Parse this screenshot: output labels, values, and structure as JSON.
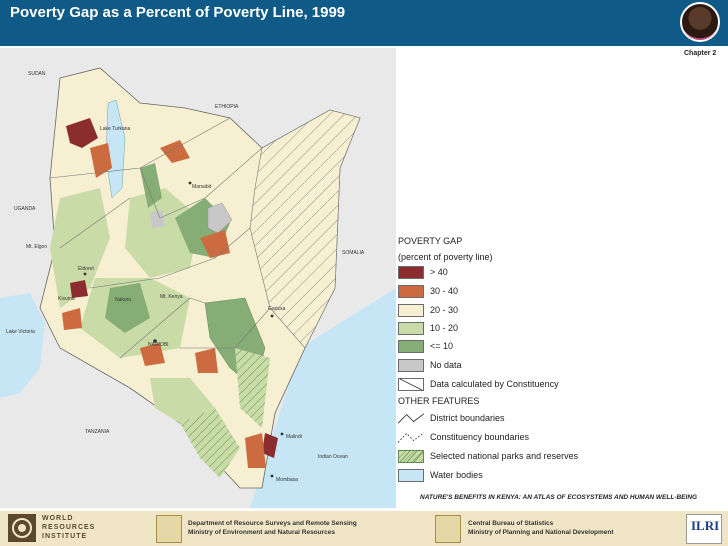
{
  "header": {
    "title": "Poverty Gap as a Percent of Poverty Line, 1999",
    "chapter": "Chapter 2"
  },
  "map": {
    "country_labels": [
      "SUDAN",
      "ETHIOPIA",
      "UGANDA",
      "SOMALIA",
      "TANZANIA"
    ],
    "place_labels": [
      "Lake Turkana",
      "Marsabit",
      "Mt. Elgon",
      "Eldoret",
      "Kisumu",
      "Nakuru",
      "Mt. Kenya",
      "NAIROBI",
      "Garissa",
      "Malindi",
      "Mombasa",
      "Lake Victoria",
      "Indian Ocean"
    ]
  },
  "legend": {
    "title": "POVERTY GAP",
    "subtitle": "(percent of poverty line)",
    "items": [
      {
        "label": "> 40",
        "color": "#8b2d2f"
      },
      {
        "label": "30 - 40",
        "color": "#cc6b3f"
      },
      {
        "label": "20 - 30",
        "color": "#f7efd2"
      },
      {
        "label": "10 - 20",
        "color": "#c9dca8"
      },
      {
        "label": "<= 10",
        "color": "#86ad76"
      },
      {
        "label": "No data",
        "color": "#c8c8c8"
      },
      {
        "label": "Data calculated by Constituency",
        "color": "#ffffff"
      }
    ],
    "other_title": "OTHER FEATURES",
    "other_items": [
      {
        "label": "District boundaries"
      },
      {
        "label": "Constituency boundaries"
      },
      {
        "label": "Selected national parks and reserves"
      },
      {
        "label": "Water bodies",
        "color": "#c6e6f5"
      }
    ]
  },
  "caption": "NATURE'S BENEFITS IN KENYA: AN ATLAS OF ECOSYSTEMS AND HUMAN WELL-BEING",
  "footer": {
    "wri_lines": [
      "WORLD",
      "RESOURCES",
      "INSTITUTE"
    ],
    "dept1_line1": "Department of Resource Surveys and Remote Sensing",
    "dept1_line2": "Ministry of Environment and Natural Resources",
    "dept2_line1": "Central Bureau of Statistics",
    "dept2_line2": "Ministry of Planning and National Development",
    "ilri": "ILRI"
  }
}
